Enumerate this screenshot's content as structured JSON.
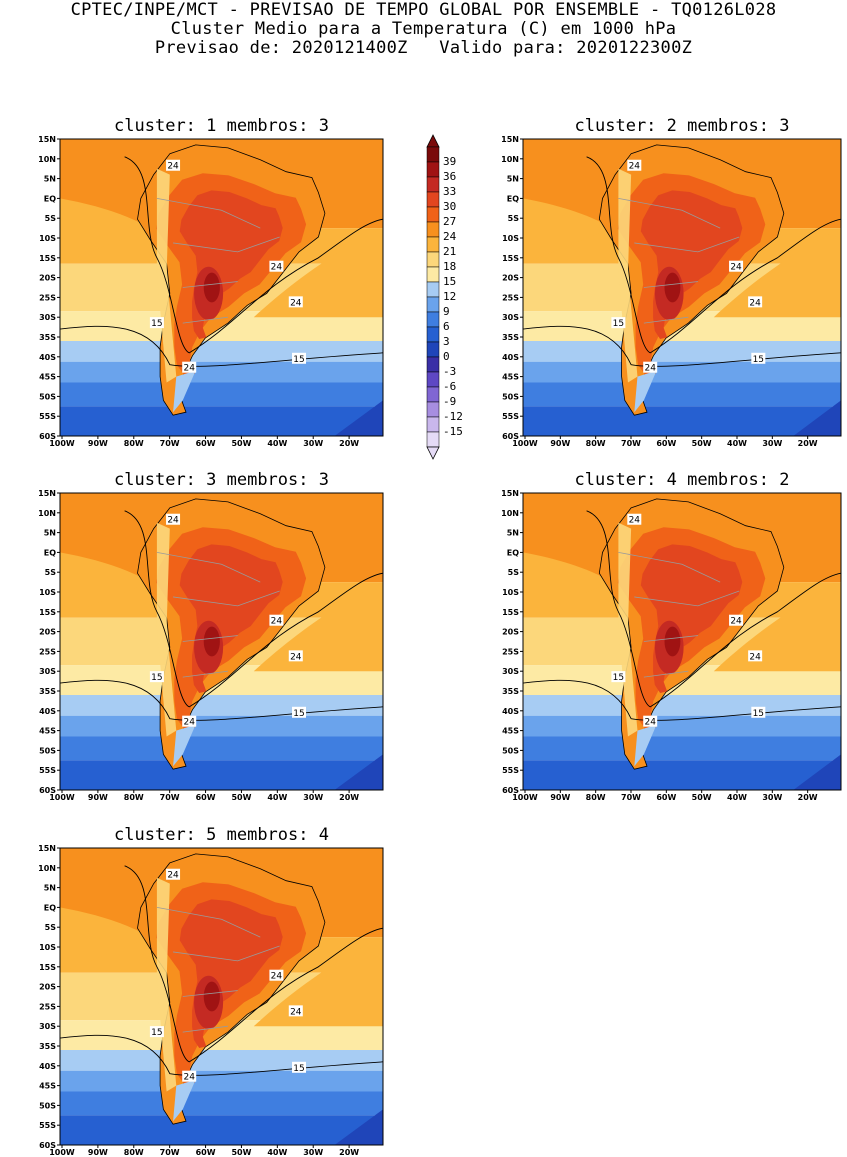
{
  "header": {
    "line1": "CPTEC/INPE/MCT - PREVISAO DE TEMPO GLOBAL POR ENSEMBLE - TQ0126L028",
    "line2": "Cluster Medio para a Temperatura (C) em 1000 hPa",
    "line3": "Previsao de: 2020121400Z   Valido para: 2020122300Z"
  },
  "lat_labels": [
    "15N",
    "10N",
    "5N",
    "EQ",
    "5S",
    "10S",
    "15S",
    "20S",
    "25S",
    "30S",
    "35S",
    "40S",
    "45S",
    "50S",
    "55S",
    "60S"
  ],
  "lon_labels": [
    "100W",
    "90W",
    "80W",
    "70W",
    "60W",
    "50W",
    "40W",
    "30W",
    "20W"
  ],
  "colorbar": {
    "levels": [
      "39",
      "36",
      "33",
      "30",
      "27",
      "24",
      "21",
      "18",
      "15",
      "12",
      "9",
      "6",
      "3",
      "0",
      "-3",
      "-6",
      "-9",
      "-12",
      "-15"
    ],
    "colors": [
      "#7a0a0a",
      "#a01313",
      "#c42a23",
      "#e2461f",
      "#f06218",
      "#f7901e",
      "#fbb43c",
      "#fcd77b",
      "#fdeaa4",
      "#a7ccf3",
      "#6aa3ec",
      "#3f7ee0",
      "#2660d1",
      "#1f45b9",
      "#3a2fa6",
      "#5e47c4",
      "#8066d3",
      "#a78ee0",
      "#c9b7ec",
      "#e5dbf6"
    ]
  },
  "panels": [
    {
      "title": "cluster: 1  membros: 3",
      "contour_labels": [
        "24",
        "24",
        "24",
        "15",
        "24",
        "15"
      ]
    },
    {
      "title": "cluster: 2  membros: 3",
      "contour_labels": [
        "24",
        "24",
        "24",
        "15",
        "24",
        "15"
      ]
    },
    {
      "title": "cluster: 3  membros: 3",
      "contour_labels": [
        "24",
        "24",
        "24",
        "15",
        "24",
        "15"
      ]
    },
    {
      "title": "cluster: 4  membros: 2",
      "contour_labels": [
        "24",
        "24",
        "24",
        "15",
        "24",
        "15"
      ]
    },
    {
      "title": "cluster: 5  membros: 4",
      "contour_labels": [
        "24",
        "24",
        "24",
        "15",
        "24",
        "15"
      ]
    }
  ]
}
